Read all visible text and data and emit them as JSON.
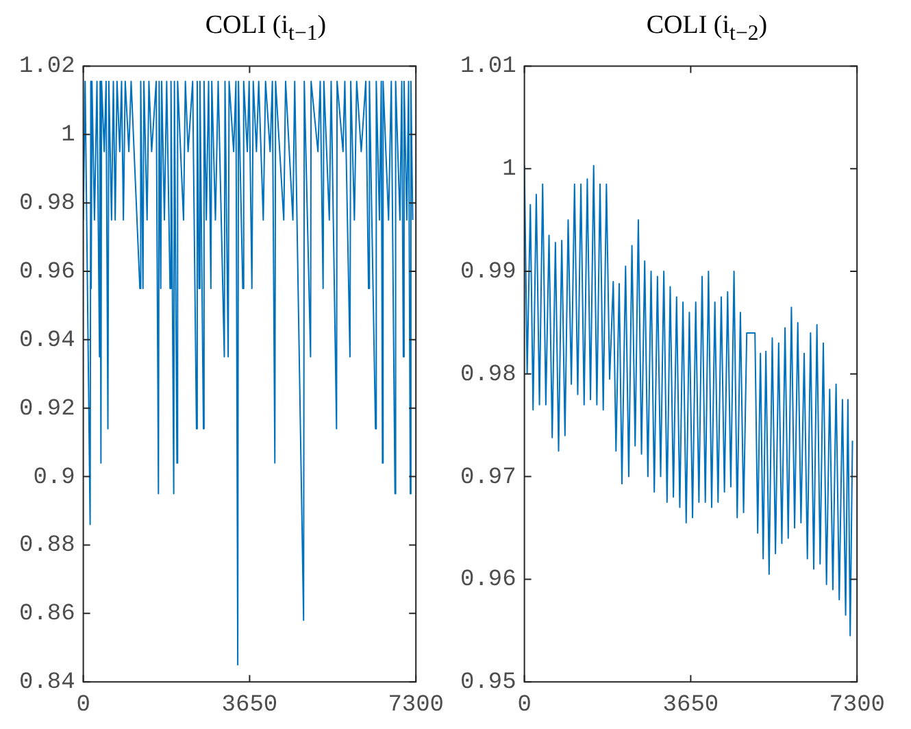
{
  "chart_data": [
    {
      "type": "line",
      "title": "COLI (i$_{t−1}$)",
      "color": "#0072bd",
      "marker": "none",
      "grid": false,
      "legend": false,
      "xlim": [
        0,
        7300
      ],
      "xticks": [
        0,
        3650,
        7300
      ],
      "ylim": [
        0.84,
        1.02
      ],
      "yticks": [
        0.84,
        0.86,
        0.88,
        0.9,
        0.92,
        0.94,
        0.96,
        0.98,
        1,
        1.02
      ],
      "x": [
        0,
        40,
        150,
        165,
        173,
        190,
        245,
        300,
        356,
        370,
        387,
        400,
        460,
        500,
        540,
        560,
        620,
        660,
        700,
        740,
        800,
        840,
        880,
        920,
        1000,
        1050,
        1242,
        1260,
        1310,
        1330,
        1400,
        1440,
        1500,
        1600,
        1649,
        1665,
        1700,
        1720,
        1780,
        1830,
        1904,
        1925,
        1985,
        2000,
        2056,
        2070,
        2200,
        2240,
        2300,
        2400,
        2484,
        2500,
        2540,
        2560,
        2637,
        2650,
        2700,
        2750,
        2800,
        2820,
        2900,
        2960,
        3095,
        3110,
        3180,
        3200,
        3300,
        3350,
        3390,
        3405,
        3500,
        3520,
        3600,
        3640,
        3700,
        3730,
        3800,
        3850,
        3950,
        4000,
        4100,
        4150,
        4204,
        4220,
        4400,
        4440,
        4600,
        4640,
        4835,
        4850,
        4988,
        5000,
        5150,
        5200,
        5263,
        5280,
        5400,
        5440,
        5558,
        5570,
        5700,
        5740,
        5853,
        5870,
        5950,
        6000,
        6100,
        6200,
        6260,
        6280,
        6413,
        6430,
        6500,
        6540,
        6566,
        6580,
        6700,
        6760,
        6841,
        6855,
        6950,
        6990,
        7024,
        7040,
        7100,
        7140,
        7177,
        7190,
        7230
      ],
      "values": [
        0.975,
        1.0155,
        0.886,
        1.0155,
        0.955,
        1.0155,
        0.975,
        1.0155,
        0.935,
        1.0155,
        0.904,
        1.0155,
        0.995,
        1.0155,
        0.914,
        1.0155,
        0.975,
        1.0155,
        0.975,
        1.0155,
        0.995,
        1.0155,
        0.975,
        1.0155,
        0.995,
        1.0155,
        0.955,
        1.0155,
        0.955,
        1.0155,
        0.975,
        1.0155,
        0.995,
        1.0155,
        0.895,
        1.0155,
        0.955,
        1.0155,
        0.975,
        1.0155,
        0.955,
        1.0155,
        0.895,
        1.0155,
        0.904,
        1.0155,
        0.975,
        1.0155,
        0.995,
        1.0155,
        0.914,
        1.0155,
        0.955,
        1.0155,
        0.914,
        1.0155,
        0.975,
        1.0155,
        0.955,
        1.0155,
        0.975,
        1.0155,
        0.935,
        1.0155,
        0.935,
        1.0155,
        0.995,
        1.0155,
        0.845,
        1.0155,
        0.955,
        1.0155,
        0.995,
        1.0155,
        0.955,
        1.0155,
        0.995,
        1.0155,
        0.975,
        1.0155,
        0.995,
        1.0155,
        0.904,
        1.0155,
        0.975,
        1.0155,
        0.975,
        1.0155,
        0.858,
        1.0155,
        0.935,
        1.0155,
        0.995,
        1.0155,
        0.955,
        1.0155,
        0.975,
        1.0155,
        0.914,
        1.0155,
        0.995,
        1.0155,
        0.935,
        1.0155,
        0.975,
        1.0155,
        0.995,
        1.0155,
        0.955,
        1.0155,
        0.914,
        1.0155,
        0.975,
        1.0155,
        0.904,
        1.0155,
        0.975,
        1.0155,
        0.895,
        1.0155,
        0.975,
        1.0155,
        0.935,
        1.0155,
        0.975,
        1.0155,
        0.895,
        1.0155,
        0.975
      ]
    },
    {
      "type": "line",
      "title": "COLI (i$_{t−2}$)",
      "color": "#0072bd",
      "marker": "none",
      "grid": false,
      "legend": false,
      "xlim": [
        0,
        7300
      ],
      "xticks": [
        0,
        3650,
        7300
      ],
      "ylim": [
        0.95,
        1.01
      ],
      "yticks": [
        0.95,
        0.96,
        0.97,
        0.98,
        0.99,
        1,
        1.01
      ],
      "x": [
        0,
        60,
        130,
        190,
        260,
        330,
        400,
        470,
        540,
        610,
        680,
        750,
        820,
        890,
        960,
        1030,
        1100,
        1170,
        1240,
        1310,
        1380,
        1450,
        1520,
        1590,
        1660,
        1730,
        1800,
        1870,
        1950,
        2010,
        2080,
        2140,
        2220,
        2290,
        2360,
        2430,
        2500,
        2570,
        2640,
        2710,
        2780,
        2850,
        2920,
        2990,
        3060,
        3130,
        3200,
        3270,
        3340,
        3410,
        3480,
        3550,
        3620,
        3690,
        3760,
        3830,
        3900,
        3970,
        4040,
        4110,
        4180,
        4250,
        4320,
        4390,
        4460,
        4530,
        4600,
        4670,
        4740,
        4810,
        4880,
        5060,
        5120,
        5180,
        5240,
        5300,
        5370,
        5440,
        5510,
        5580,
        5650,
        5720,
        5790,
        5860,
        5930,
        6000,
        6070,
        6140,
        6210,
        6280,
        6350,
        6420,
        6490,
        6560,
        6630,
        6700,
        6770,
        6840,
        6910,
        6980,
        7050,
        7100,
        7150,
        7200
      ],
      "values": [
        1.0003,
        0.98,
        0.9965,
        0.9765,
        0.9975,
        0.977,
        0.9985,
        0.977,
        0.9935,
        0.9738,
        0.9928,
        0.9725,
        0.993,
        0.974,
        0.995,
        0.979,
        0.9985,
        0.978,
        0.9985,
        0.977,
        0.999,
        0.9775,
        1.0003,
        0.977,
        0.9985,
        0.9765,
        0.9985,
        0.9795,
        0.989,
        0.9725,
        0.9888,
        0.9693,
        0.9905,
        0.97,
        0.9925,
        0.973,
        0.995,
        0.9722,
        0.991,
        0.97,
        0.99,
        0.9685,
        0.9895,
        0.97,
        0.99,
        0.9675,
        0.9885,
        0.968,
        0.9875,
        0.967,
        0.987,
        0.9655,
        0.986,
        0.966,
        0.987,
        0.9675,
        0.9895,
        0.9675,
        0.99,
        0.967,
        0.987,
        0.9675,
        0.9875,
        0.9685,
        0.988,
        0.969,
        0.99,
        0.966,
        0.986,
        0.9665,
        0.984,
        0.984,
        0.9645,
        0.982,
        0.962,
        0.9822,
        0.9605,
        0.9835,
        0.9625,
        0.983,
        0.9635,
        0.9845,
        0.964,
        0.9865,
        0.965,
        0.985,
        0.9655,
        0.982,
        0.962,
        0.984,
        0.961,
        0.9848,
        0.9615,
        0.983,
        0.9595,
        0.9785,
        0.959,
        0.979,
        0.958,
        0.9775,
        0.9565,
        0.9775,
        0.9545,
        0.9735
      ]
    }
  ]
}
